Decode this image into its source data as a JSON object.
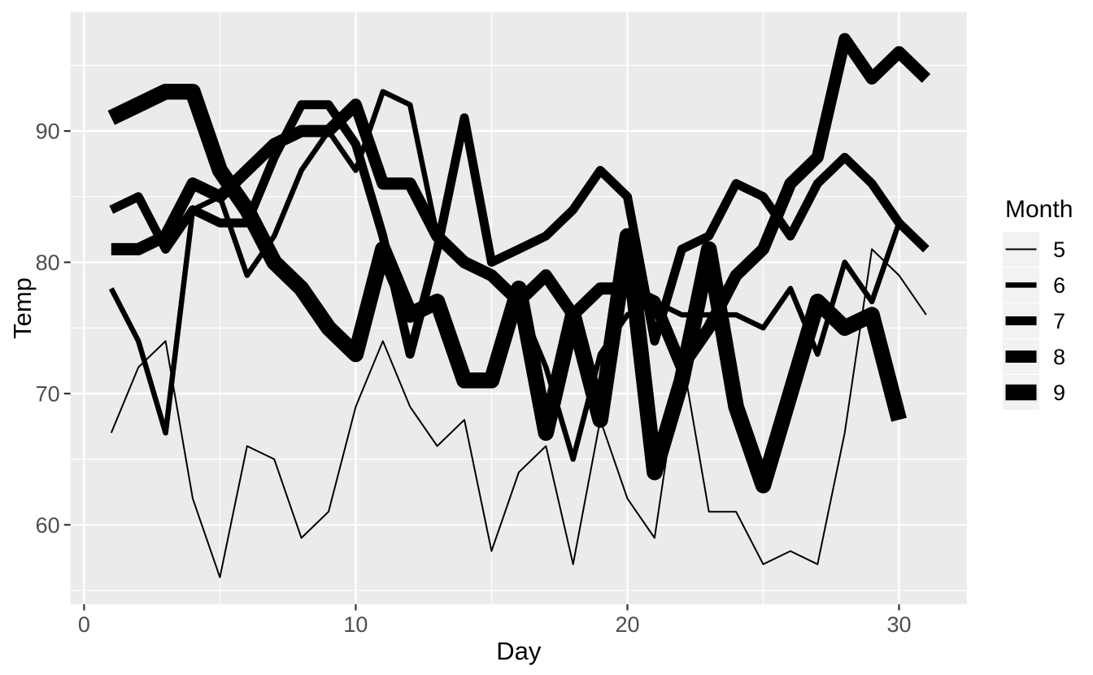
{
  "chart_data": {
    "type": "line",
    "title": "",
    "xlabel": "Day",
    "ylabel": "Temp",
    "legend_title": "Month",
    "legend_position": "right",
    "grid": true,
    "xlim": [
      -0.5,
      32.5
    ],
    "ylim": [
      53.95,
      99.05
    ],
    "x_major_ticks": [
      0,
      10,
      20,
      30
    ],
    "x_minor_ticks": [
      5,
      15,
      25
    ],
    "y_major_ticks": [
      60,
      70,
      80,
      90
    ],
    "y_minor_ticks": [
      55,
      65,
      75,
      85,
      95
    ],
    "colors": {
      "line": "#000000",
      "panel_bg": "#EBEBEB",
      "grid": "#FFFFFF",
      "tick_mark": "#333333",
      "tick_text": "#4D4D4D",
      "axis_title": "#000000",
      "legend_key_bg": "#F2F2F2",
      "legend_text": "#000000",
      "background": "#FFFFFF"
    },
    "series": [
      {
        "name": "5",
        "line_width": 2,
        "values": [
          67,
          72,
          74,
          62,
          56,
          66,
          65,
          59,
          61,
          69,
          74,
          69,
          66,
          68,
          58,
          64,
          66,
          57,
          68,
          62,
          59,
          73,
          61,
          61,
          57,
          58,
          57,
          67,
          81,
          79,
          76
        ]
      },
      {
        "name": "6",
        "line_width": 6.5,
        "values": [
          78,
          74,
          67,
          84,
          85,
          79,
          82,
          87,
          90,
          87,
          93,
          92,
          82,
          80,
          79,
          77,
          72,
          65,
          73,
          76,
          77,
          76,
          76,
          76,
          75,
          78,
          73,
          80,
          77,
          83
        ]
      },
      {
        "name": "7",
        "line_width": 11,
        "values": [
          84,
          85,
          81,
          84,
          83,
          83,
          88,
          92,
          92,
          89,
          82,
          73,
          81,
          91,
          80,
          81,
          82,
          84,
          87,
          85,
          74,
          81,
          82,
          86,
          85,
          82,
          86,
          88,
          86,
          83,
          81
        ]
      },
      {
        "name": "8",
        "line_width": 15,
        "values": [
          81,
          81,
          82,
          86,
          85,
          87,
          89,
          90,
          90,
          92,
          86,
          86,
          82,
          80,
          79,
          77,
          79,
          76,
          78,
          78,
          77,
          72,
          75,
          79,
          81,
          86,
          88,
          97,
          94,
          96,
          94
        ]
      },
      {
        "name": "9",
        "line_width": 19.5,
        "values": [
          91,
          92,
          93,
          93,
          87,
          84,
          80,
          78,
          75,
          73,
          81,
          76,
          77,
          71,
          71,
          78,
          67,
          76,
          68,
          82,
          64,
          71,
          81,
          69,
          63,
          70,
          77,
          75,
          76,
          68
        ]
      }
    ]
  }
}
